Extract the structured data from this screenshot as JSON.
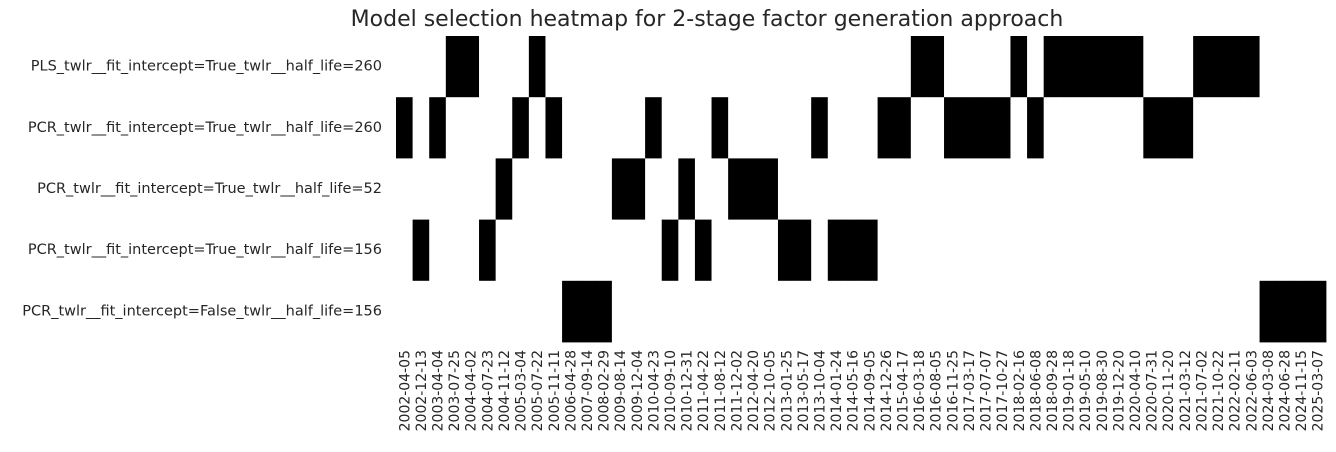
{
  "chart_data": {
    "type": "heatmap",
    "title": "Model selection heatmap for 2-stage factor generation approach",
    "categories": [
      "2002-04-05",
      "2002-12-13",
      "2003-04-04",
      "2003-07-25",
      "2004-04-02",
      "2004-07-23",
      "2004-11-12",
      "2005-03-04",
      "2005-07-22",
      "2005-11-11",
      "2006-04-28",
      "2007-09-14",
      "2008-02-29",
      "2009-08-14",
      "2009-12-04",
      "2010-04-23",
      "2010-09-10",
      "2010-12-31",
      "2011-04-22",
      "2011-08-12",
      "2011-12-02",
      "2012-04-20",
      "2012-10-05",
      "2013-01-25",
      "2013-05-17",
      "2013-10-04",
      "2014-01-24",
      "2014-05-16",
      "2014-09-05",
      "2014-12-26",
      "2015-04-17",
      "2016-03-18",
      "2016-08-05",
      "2016-11-25",
      "2017-03-17",
      "2017-07-07",
      "2017-10-27",
      "2018-02-16",
      "2018-06-08",
      "2018-09-28",
      "2019-01-18",
      "2019-05-10",
      "2019-08-30",
      "2019-12-20",
      "2020-04-10",
      "2020-07-31",
      "2020-11-20",
      "2021-03-12",
      "2021-07-02",
      "2021-10-22",
      "2022-02-11",
      "2022-06-03",
      "2024-03-08",
      "2024-06-28",
      "2024-11-15",
      "2025-03-07"
    ],
    "series": [
      {
        "name": "PLS_twlr__fit_intercept=True_twlr__half_life=260",
        "values": [
          0,
          0,
          0,
          1,
          1,
          0,
          0,
          0,
          1,
          0,
          0,
          0,
          0,
          0,
          0,
          0,
          0,
          0,
          0,
          0,
          0,
          0,
          0,
          0,
          0,
          0,
          0,
          0,
          0,
          0,
          0,
          1,
          1,
          0,
          0,
          0,
          0,
          1,
          0,
          1,
          1,
          1,
          1,
          1,
          1,
          0,
          0,
          0,
          1,
          1,
          1,
          1,
          0,
          0,
          0,
          0
        ]
      },
      {
        "name": "PCR_twlr__fit_intercept=True_twlr__half_life=260",
        "values": [
          1,
          0,
          1,
          0,
          0,
          0,
          0,
          1,
          0,
          1,
          0,
          0,
          0,
          0,
          0,
          1,
          0,
          0,
          0,
          1,
          0,
          0,
          0,
          0,
          0,
          1,
          0,
          0,
          0,
          1,
          1,
          0,
          0,
          1,
          1,
          1,
          1,
          0,
          1,
          0,
          0,
          0,
          0,
          0,
          0,
          1,
          1,
          1,
          0,
          0,
          0,
          0,
          0,
          0,
          0,
          0
        ]
      },
      {
        "name": "PCR_twlr__fit_intercept=True_twlr__half_life=52",
        "values": [
          0,
          0,
          0,
          0,
          0,
          0,
          1,
          0,
          0,
          0,
          0,
          0,
          0,
          1,
          1,
          0,
          0,
          1,
          0,
          0,
          1,
          1,
          1,
          0,
          0,
          0,
          0,
          0,
          0,
          0,
          0,
          0,
          0,
          0,
          0,
          0,
          0,
          0,
          0,
          0,
          0,
          0,
          0,
          0,
          0,
          0,
          0,
          0,
          0,
          0,
          0,
          0,
          0,
          0,
          0,
          0
        ]
      },
      {
        "name": "PCR_twlr__fit_intercept=True_twlr__half_life=156",
        "values": [
          0,
          1,
          0,
          0,
          0,
          1,
          0,
          0,
          0,
          0,
          0,
          0,
          0,
          0,
          0,
          0,
          1,
          0,
          1,
          0,
          0,
          0,
          0,
          1,
          1,
          0,
          1,
          1,
          1,
          0,
          0,
          0,
          0,
          0,
          0,
          0,
          0,
          0,
          0,
          0,
          0,
          0,
          0,
          0,
          0,
          0,
          0,
          0,
          0,
          0,
          0,
          0,
          0,
          0,
          0,
          0
        ]
      },
      {
        "name": "PCR_twlr__fit_intercept=False_twlr__half_life=156",
        "values": [
          0,
          0,
          0,
          0,
          0,
          0,
          0,
          0,
          0,
          0,
          1,
          1,
          1,
          0,
          0,
          0,
          0,
          0,
          0,
          0,
          0,
          0,
          0,
          0,
          0,
          0,
          0,
          0,
          0,
          0,
          0,
          0,
          0,
          0,
          0,
          0,
          0,
          0,
          0,
          0,
          0,
          0,
          0,
          0,
          0,
          0,
          0,
          0,
          0,
          0,
          0,
          0,
          1,
          1,
          1,
          1
        ]
      }
    ],
    "cmap": [
      "#ffffff",
      "#000000"
    ]
  }
}
